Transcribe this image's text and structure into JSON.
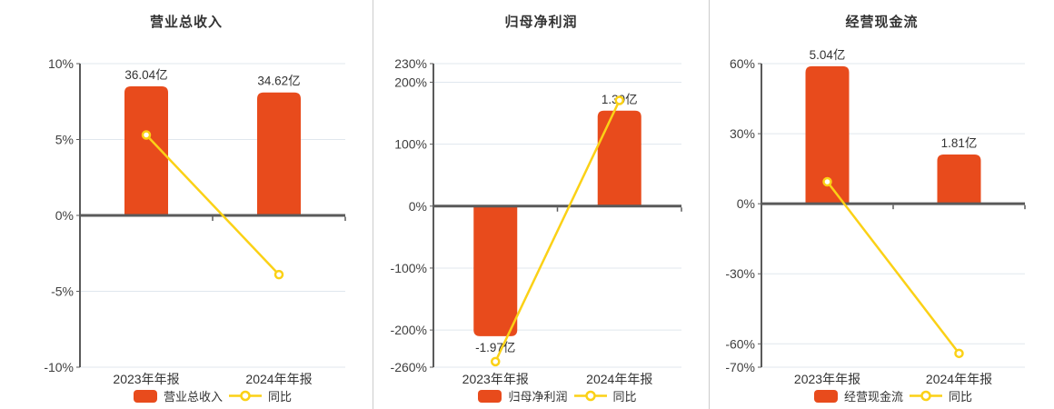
{
  "colors": {
    "bar": "#E84B1C",
    "line": "#FBD116",
    "grid": "#E0E7EE",
    "axis": "#5A5A5A",
    "text": "#333333",
    "divider": "#CCCCCC",
    "background": "#FFFFFF"
  },
  "chart_data": [
    {
      "type": "bar+line",
      "title": "营业总收入",
      "categories": [
        "2023年年报",
        "2024年年报"
      ],
      "legend": [
        "营业总收入",
        "同比"
      ],
      "legend_position": "bottom",
      "grid": true,
      "ylim": [
        -10,
        10
      ],
      "yticks": [
        {
          "value": 10,
          "label": "10%"
        },
        {
          "value": 5,
          "label": "5%"
        },
        {
          "value": 0,
          "label": "0%"
        },
        {
          "value": -5,
          "label": "-5%"
        },
        {
          "value": -10,
          "label": "-10%"
        }
      ],
      "bar_series": {
        "name": "营业总收入",
        "unit": "亿",
        "values": [
          36.04,
          34.62
        ],
        "labels": [
          "36.04亿",
          "34.62亿"
        ],
        "plotted_pct": [
          8.5,
          8.1
        ]
      },
      "line_series": {
        "name": "同比",
        "values_pct": [
          5.3,
          -3.9
        ]
      }
    },
    {
      "type": "bar+line",
      "title": "归母净利润",
      "categories": [
        "2023年年报",
        "2024年年报"
      ],
      "legend": [
        "归母净利润",
        "同比"
      ],
      "legend_position": "bottom",
      "grid": true,
      "ylim": [
        -260,
        230
      ],
      "yticks": [
        {
          "value": 230,
          "label": "230%"
        },
        {
          "value": 200,
          "label": "200%"
        },
        {
          "value": 100,
          "label": "100%"
        },
        {
          "value": 0,
          "label": "0%"
        },
        {
          "value": -100,
          "label": "-100%"
        },
        {
          "value": -200,
          "label": "-200%"
        },
        {
          "value": -260,
          "label": "-260%"
        }
      ],
      "bar_series": {
        "name": "归母净利润",
        "unit": "亿",
        "values": [
          -1.97,
          1.39
        ],
        "labels": [
          "-1.97亿",
          "1.39亿"
        ],
        "plotted_pct": [
          -210,
          154
        ]
      },
      "line_series": {
        "name": "同比",
        "values_pct": [
          -251,
          170.6
        ]
      }
    },
    {
      "type": "bar+line",
      "title": "经营现金流",
      "categories": [
        "2023年年报",
        "2024年年报"
      ],
      "legend": [
        "经营现金流",
        "同比"
      ],
      "legend_position": "bottom",
      "grid": true,
      "ylim": [
        -70,
        60
      ],
      "yticks": [
        {
          "value": 60,
          "label": "60%"
        },
        {
          "value": 30,
          "label": "30%"
        },
        {
          "value": 0,
          "label": "0%"
        },
        {
          "value": -30,
          "label": "-30%"
        },
        {
          "value": -60,
          "label": "-60%"
        },
        {
          "value": -70,
          "label": "-70%"
        }
      ],
      "bar_series": {
        "name": "经营现金流",
        "unit": "亿",
        "values": [
          5.04,
          1.81
        ],
        "labels": [
          "5.04亿",
          "1.81亿"
        ],
        "plotted_pct": [
          58.9,
          21.1
        ]
      },
      "line_series": {
        "name": "同比",
        "values_pct": [
          9.4,
          -64.1
        ]
      }
    }
  ]
}
